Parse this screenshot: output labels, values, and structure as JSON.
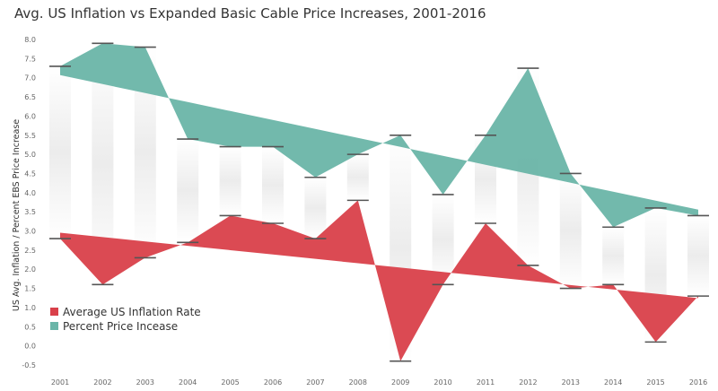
{
  "chart_data": {
    "type": "area",
    "title": "Avg. US Inflation vs Expanded Basic Cable Price Increases, 2001-2016",
    "xlabel": "",
    "ylabel": "US Avg. Inflation / Percent EBS Price Increase",
    "categories": [
      "2001",
      "2002",
      "2003",
      "2004",
      "2005",
      "2006",
      "2007",
      "2008",
      "2009",
      "2010",
      "2011",
      "2012",
      "2013",
      "2014",
      "2015",
      "2016"
    ],
    "series": [
      {
        "name": "Average US Inflation Rate",
        "color": "#d9404a",
        "values": [
          2.8,
          1.6,
          2.3,
          2.7,
          3.4,
          3.2,
          2.8,
          3.8,
          -0.4,
          1.6,
          3.2,
          2.1,
          1.5,
          1.6,
          0.1,
          1.3
        ]
      },
      {
        "name": "Percent Price Incease",
        "color": "#6ab5a8",
        "values": [
          7.3,
          7.9,
          7.8,
          5.4,
          5.2,
          5.2,
          4.4,
          5.0,
          5.5,
          3.95,
          5.5,
          7.25,
          4.5,
          3.1,
          3.6,
          3.4
        ]
      }
    ],
    "ylim": [
      -0.5,
      8.0
    ],
    "yticks": [
      "-0.5",
      "0.0",
      "0.5",
      "1.0",
      "1.5",
      "2.0",
      "2.5",
      "3.0",
      "3.5",
      "4.0",
      "4.5",
      "5.0",
      "5.5",
      "6.0",
      "6.5",
      "7.0",
      "7.5",
      "8.0"
    ],
    "legend_position": "bottom-left",
    "grid": false
  }
}
